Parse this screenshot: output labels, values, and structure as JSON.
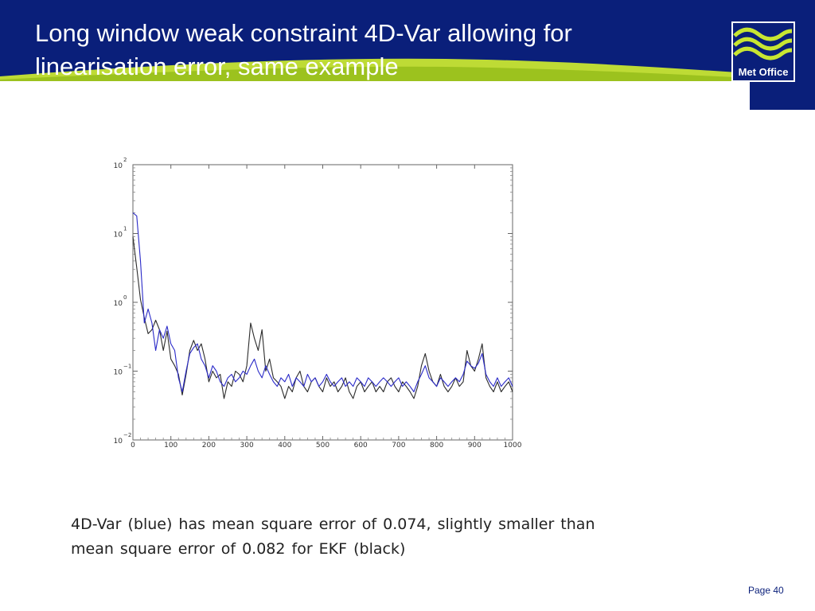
{
  "slide": {
    "title_line1": "Long window weak constraint 4D-Var allowing for",
    "title_line2": "linearisation error, same example",
    "logo_text": "Met Office",
    "caption_line1": "4D-Var (blue) has mean square error of 0.074, slightly smaller than",
    "caption_line2": "mean square error of 0.082 for EKF (black)",
    "page_label": "Page 40"
  },
  "colors": {
    "header_blue": "#0a1f7a",
    "accent_green": "#c8e632",
    "series_4dvar": "#2a2ac8",
    "series_ekf": "#2b2b2b"
  },
  "chart_data": {
    "type": "line",
    "title": "",
    "xlabel": "",
    "ylabel": "",
    "yscale": "log",
    "xlim": [
      0,
      1000
    ],
    "ylim": [
      0.01,
      100
    ],
    "x_ticks": [
      "0",
      "100",
      "200",
      "300",
      "400",
      "500",
      "600",
      "700",
      "800",
      "900",
      "1000"
    ],
    "y_ticks": [
      {
        "base": "10",
        "exp": "−2"
      },
      {
        "base": "10",
        "exp": "−1"
      },
      {
        "base": "10",
        "exp": "0"
      },
      {
        "base": "10",
        "exp": "1"
      },
      {
        "base": "10",
        "exp": "2"
      }
    ],
    "grid": false,
    "legend": "none",
    "x": [
      0,
      10,
      20,
      30,
      40,
      50,
      60,
      70,
      80,
      90,
      100,
      110,
      120,
      130,
      140,
      150,
      160,
      170,
      180,
      190,
      200,
      210,
      220,
      230,
      240,
      250,
      260,
      270,
      280,
      290,
      300,
      310,
      320,
      330,
      340,
      350,
      360,
      370,
      380,
      390,
      400,
      410,
      420,
      430,
      440,
      450,
      460,
      470,
      480,
      490,
      500,
      510,
      520,
      530,
      540,
      550,
      560,
      570,
      580,
      590,
      600,
      610,
      620,
      630,
      640,
      650,
      660,
      670,
      680,
      690,
      700,
      710,
      720,
      730,
      740,
      750,
      760,
      770,
      780,
      790,
      800,
      810,
      820,
      830,
      840,
      850,
      860,
      870,
      880,
      890,
      900,
      910,
      920,
      930,
      940,
      950,
      960,
      970,
      980,
      990,
      1000
    ],
    "series": [
      {
        "name": "EKF",
        "color": "#2b2b2b",
        "values": [
          9.0,
          3.2,
          1.1,
          0.6,
          0.35,
          0.4,
          0.55,
          0.4,
          0.2,
          0.38,
          0.15,
          0.12,
          0.09,
          0.045,
          0.09,
          0.2,
          0.28,
          0.2,
          0.25,
          0.15,
          0.07,
          0.1,
          0.08,
          0.09,
          0.04,
          0.07,
          0.06,
          0.1,
          0.09,
          0.07,
          0.12,
          0.5,
          0.3,
          0.2,
          0.4,
          0.1,
          0.15,
          0.08,
          0.07,
          0.06,
          0.04,
          0.06,
          0.05,
          0.08,
          0.1,
          0.06,
          0.05,
          0.07,
          0.08,
          0.06,
          0.05,
          0.08,
          0.06,
          0.07,
          0.05,
          0.06,
          0.08,
          0.05,
          0.04,
          0.06,
          0.07,
          0.05,
          0.06,
          0.07,
          0.05,
          0.06,
          0.05,
          0.07,
          0.08,
          0.06,
          0.05,
          0.07,
          0.06,
          0.05,
          0.04,
          0.06,
          0.12,
          0.18,
          0.1,
          0.07,
          0.06,
          0.09,
          0.06,
          0.05,
          0.06,
          0.08,
          0.06,
          0.07,
          0.2,
          0.12,
          0.1,
          0.15,
          0.25,
          0.08,
          0.06,
          0.05,
          0.07,
          0.05,
          0.06,
          0.07,
          0.05
        ]
      },
      {
        "name": "4D-Var",
        "color": "#2a2ac8",
        "values": [
          20.0,
          18.0,
          4.0,
          0.5,
          0.8,
          0.5,
          0.2,
          0.4,
          0.3,
          0.45,
          0.25,
          0.2,
          0.08,
          0.05,
          0.1,
          0.18,
          0.22,
          0.25,
          0.15,
          0.12,
          0.08,
          0.12,
          0.1,
          0.07,
          0.06,
          0.08,
          0.09,
          0.07,
          0.08,
          0.1,
          0.09,
          0.12,
          0.15,
          0.1,
          0.08,
          0.12,
          0.09,
          0.07,
          0.06,
          0.08,
          0.07,
          0.09,
          0.06,
          0.08,
          0.07,
          0.06,
          0.09,
          0.07,
          0.08,
          0.06,
          0.07,
          0.09,
          0.07,
          0.06,
          0.07,
          0.08,
          0.06,
          0.07,
          0.06,
          0.08,
          0.07,
          0.06,
          0.08,
          0.07,
          0.06,
          0.07,
          0.08,
          0.07,
          0.06,
          0.07,
          0.08,
          0.06,
          0.07,
          0.06,
          0.05,
          0.07,
          0.09,
          0.12,
          0.08,
          0.07,
          0.06,
          0.08,
          0.07,
          0.06,
          0.07,
          0.08,
          0.07,
          0.09,
          0.14,
          0.12,
          0.11,
          0.13,
          0.18,
          0.09,
          0.07,
          0.06,
          0.08,
          0.06,
          0.07,
          0.08,
          0.06
        ]
      }
    ]
  }
}
